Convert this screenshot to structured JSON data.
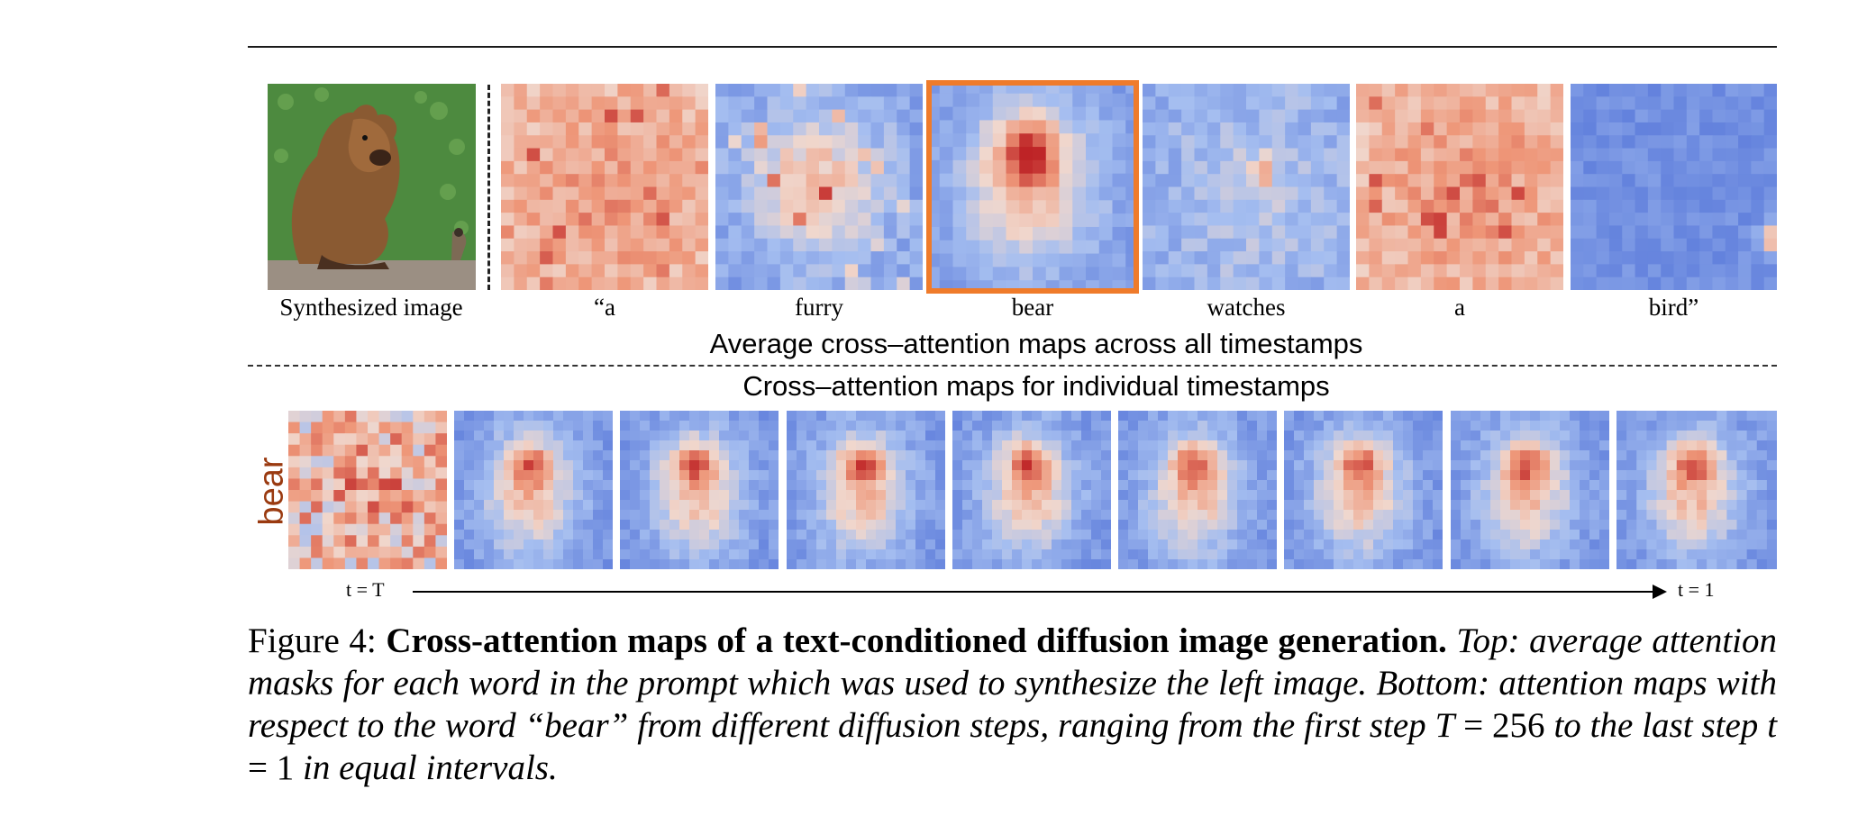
{
  "figure": {
    "synth_label": "Synthesized image",
    "prompt_words": [
      "“a",
      "furry",
      "bear",
      "watches",
      "a",
      "bird”"
    ],
    "selected_word_index": 2,
    "heading_avg": "Average cross–attention maps across all timestamps",
    "heading_ind": "Cross–attention maps for individual  timestamps",
    "row_word": "bear",
    "t_start": "t = T",
    "t_end": "t = 1",
    "timestep_panel_count": 9
  },
  "caption": {
    "label": "Figure 4:",
    "bold": "Cross-attention maps of a text-conditioned diffusion image generation.",
    "italic_1": "Top: average attention masks for each word in the prompt which was used to synthesize the left image. Bottom: attention maps with respect to the word “bear” from different diffusion steps, ranging from the first step",
    "math_T": "T",
    "eq1": " = 256 ",
    "italic_2": "to the last step",
    "math_t": "t",
    "eq2": " = 1 ",
    "italic_3": "in equal intervals."
  },
  "colors": {
    "accent": "#ef7b2b",
    "bear_label": "#9a3a10",
    "cold": "#3f62d6",
    "warm": "#c8252a"
  }
}
